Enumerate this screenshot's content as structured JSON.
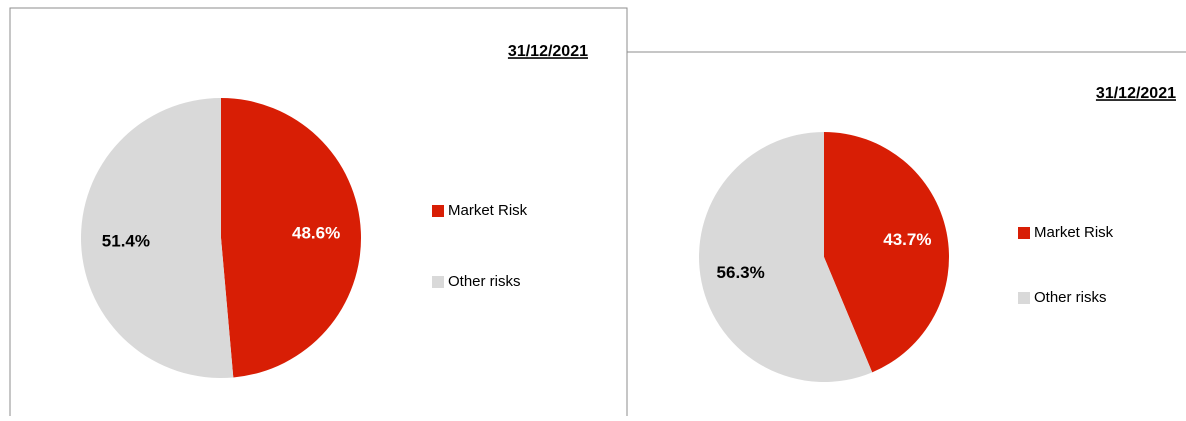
{
  "chart_data": [
    {
      "type": "pie",
      "title": "31/12/2021",
      "categories": [
        "Market Risk",
        "Other risks"
      ],
      "values": [
        48.6,
        51.4
      ],
      "value_labels": [
        "48.6%",
        "51.4%"
      ],
      "colors": [
        "#d81e05",
        "#d9d9d9"
      ]
    },
    {
      "type": "pie",
      "title": "31/12/2021",
      "categories": [
        "Market Risk",
        "Other risks"
      ],
      "values": [
        43.7,
        56.3
      ],
      "value_labels": [
        "43.7%",
        "56.3%"
      ],
      "colors": [
        "#d81e05",
        "#d9d9d9"
      ]
    }
  ]
}
